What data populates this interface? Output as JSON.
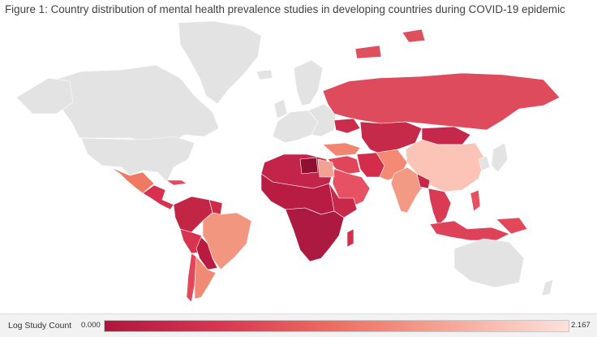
{
  "title": "Figure 1: Country distribution of mental health prevalence studies in developing countries during COVID-19 epidemic",
  "legend": {
    "title": "Log Study Count",
    "min_label": "0.000",
    "max_label": "2.167",
    "colors": [
      "#b0163e",
      "#d73752",
      "#ee6f62",
      "#f6a899",
      "#fde2da"
    ]
  },
  "colors": {
    "no_data": "#e3e3e3",
    "background": "#ffffff"
  }
}
